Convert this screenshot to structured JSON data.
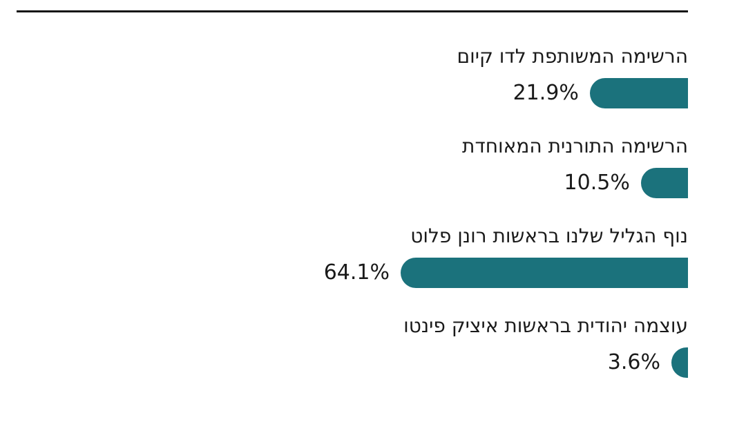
{
  "chart_data": {
    "type": "bar",
    "orientation": "horizontal",
    "direction": "rtl",
    "title": "",
    "xlabel": "",
    "ylabel": "",
    "xlim": [
      0,
      64.1
    ],
    "grid": false,
    "legend": "none",
    "color": "#1b727c",
    "categories": [
      "הרשימה המשותפת לדו קיום",
      "הרשימה התורנית המאוחדת",
      "נוף הגליל שלנו בראשות רונן פלוט",
      "עוצמה יהודית בראשות איציק פינטו"
    ],
    "values": [
      21.9,
      10.5,
      64.1,
      3.6
    ],
    "value_labels": [
      "21.9%",
      "10.5%",
      "64.1%",
      "3.6%"
    ]
  }
}
